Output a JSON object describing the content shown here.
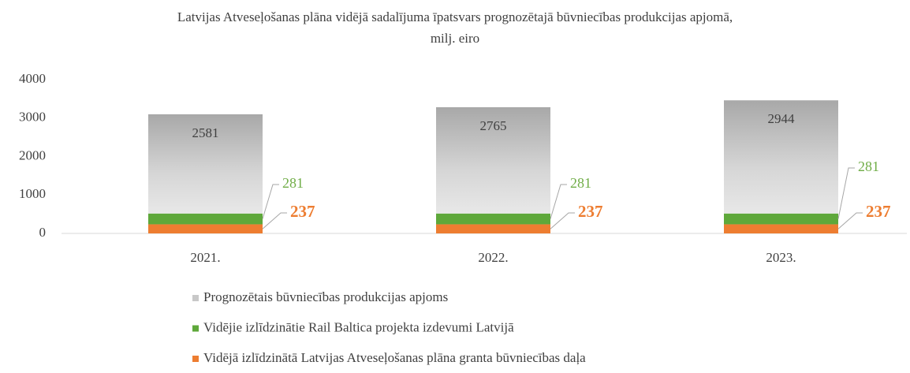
{
  "chart_data": {
    "type": "stacked-bar",
    "title": "Latvijas Atveseļošanas plāna vidējā sadalījuma īpatsvars prognozētajā būvniecības produkcijas apjomā, milj. eiro",
    "categories": [
      "2021.",
      "2022.",
      "2023."
    ],
    "series": [
      {
        "name": "Vidējā izlīdzinātā Latvijas Atveseļošanas plāna granta būvniecības daļa",
        "color": "#ed7d31",
        "values": [
          237,
          237,
          237
        ]
      },
      {
        "name": "Vidējie izlīdzinātie Rail Baltica projekta izdevumi Latvijā",
        "color": "#5ea83a",
        "values": [
          281,
          281,
          281
        ]
      },
      {
        "name": "Prognozētais būvniecības produkcijas apjoms",
        "color": "#c8c8c8",
        "values": [
          2581,
          2765,
          2944
        ]
      }
    ],
    "ylim": [
      0,
      4000
    ],
    "yticks": [
      0,
      1000,
      2000,
      3000,
      4000
    ]
  }
}
